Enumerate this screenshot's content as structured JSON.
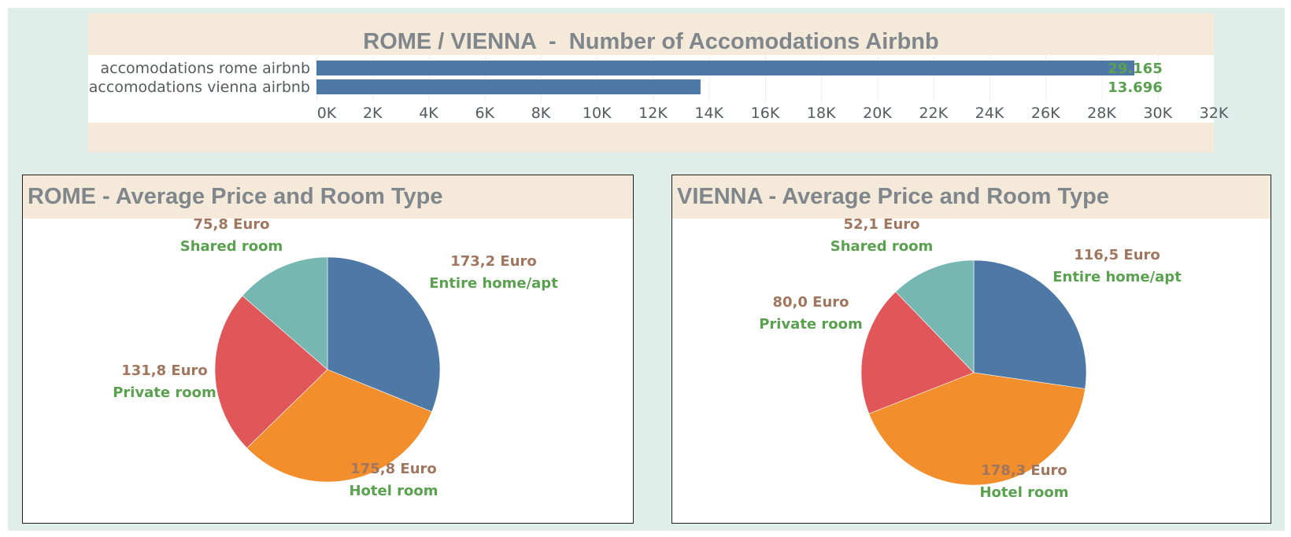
{
  "colors": {
    "bar": "#4e79a7",
    "entire": "#4e79a7",
    "hotel": "#f28e2b",
    "private": "#e15759",
    "shared": "#76b7b2",
    "price_text": "#a0775e",
    "room_text": "#59a14f",
    "value_text": "#59a14f",
    "title_text": "#7f868c",
    "panel_bg": "#f5ead9",
    "dash_bg": "#e0eeea"
  },
  "chart_data": [
    {
      "type": "bar",
      "orientation": "horizontal",
      "title": "ROME / VIENNA  -  Number of Accomodations Airbnb",
      "categories": [
        "accomodations rome airbnb",
        "accomodations vienna airbnb"
      ],
      "values": [
        29165,
        13696
      ],
      "value_labels": [
        "29.165",
        "13.696"
      ],
      "xlim": [
        0,
        32000
      ],
      "ticks": [
        0,
        2000,
        4000,
        6000,
        8000,
        10000,
        12000,
        14000,
        16000,
        18000,
        20000,
        22000,
        24000,
        26000,
        28000,
        30000,
        32000
      ],
      "tick_labels": [
        "0K",
        "2K",
        "4K",
        "6K",
        "8K",
        "10K",
        "12K",
        "14K",
        "16K",
        "18K",
        "20K",
        "22K",
        "24K",
        "26K",
        "28K",
        "30K",
        "32K"
      ],
      "grid": true
    },
    {
      "type": "pie",
      "title": "ROME - Average Price and Room Type",
      "slices": [
        {
          "key": "entire",
          "label": "Entire home/apt",
          "value": 173.2,
          "value_label": "173,2 Euro"
        },
        {
          "key": "hotel",
          "label": "Hotel room",
          "value": 175.8,
          "value_label": "175,8 Euro"
        },
        {
          "key": "private",
          "label": "Private room",
          "value": 131.8,
          "value_label": "131,8 Euro"
        },
        {
          "key": "shared",
          "label": "Shared room",
          "value": 75.8,
          "value_label": "75,8 Euro"
        }
      ]
    },
    {
      "type": "pie",
      "title": "VIENNA - Average Price and Room Type",
      "slices": [
        {
          "key": "entire",
          "label": "Entire home/apt",
          "value": 116.5,
          "value_label": "116,5 Euro"
        },
        {
          "key": "hotel",
          "label": "Hotel room",
          "value": 178.3,
          "value_label": "178,3 Euro"
        },
        {
          "key": "private",
          "label": "Private room",
          "value": 80.0,
          "value_label": "80,0 Euro"
        },
        {
          "key": "shared",
          "label": "Shared room",
          "value": 52.1,
          "value_label": "52,1 Euro"
        }
      ]
    }
  ]
}
